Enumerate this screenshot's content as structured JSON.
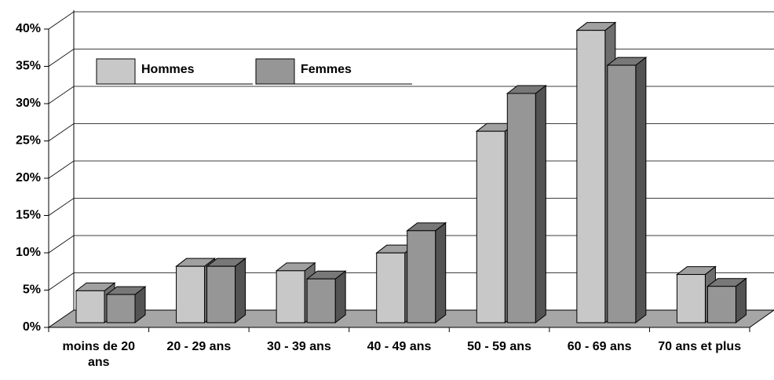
{
  "chart_data": {
    "type": "bar3d",
    "categories": [
      "moins de 20 ans",
      "20 - 29 ans",
      "30 - 39 ans",
      "40 - 49 ans",
      "50 - 59 ans",
      "60 - 69 ans",
      "70 ans et plus"
    ],
    "series": [
      {
        "name": "Hommes",
        "color": "#c8c8c8",
        "values": [
          4.3,
          7.6,
          7.0,
          9.4,
          25.8,
          39.4,
          6.5
        ]
      },
      {
        "name": "Femmes",
        "color": "#969696",
        "values": [
          3.8,
          7.6,
          5.9,
          12.4,
          30.9,
          34.7,
          4.9
        ]
      }
    ],
    "ylim": [
      0,
      40
    ],
    "yticks": [
      {
        "value": 0,
        "label": "0%"
      },
      {
        "value": 5,
        "label": "5%"
      },
      {
        "value": 10,
        "label": "10%"
      },
      {
        "value": 15,
        "label": "15%"
      },
      {
        "value": 20,
        "label": "20%"
      },
      {
        "value": 25,
        "label": "25%"
      },
      {
        "value": 30,
        "label": "30%"
      },
      {
        "value": 35,
        "label": "35%"
      },
      {
        "value": 40,
        "label": "40%"
      }
    ],
    "grid": true
  }
}
